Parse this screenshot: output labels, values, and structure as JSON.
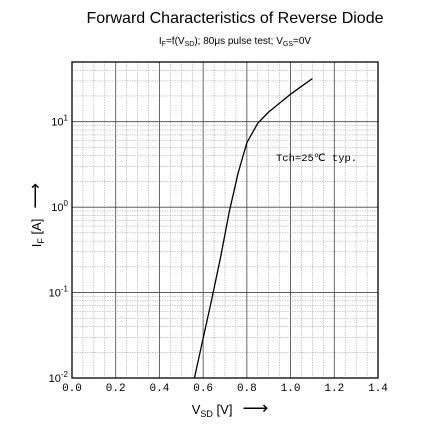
{
  "chart_data": {
    "type": "line",
    "title": "Forward Characteristics of Reverse Diode",
    "subtitle": {
      "p1": "I",
      "p1_sub": "F",
      "p2": "=f(V",
      "p2_sub": "SD",
      "p3": "); 80μs pulse test; V",
      "p3_sub": "GS",
      "p4": "=0V"
    },
    "xlabel": {
      "main": "V",
      "sub": "SD",
      "unit": " [V]",
      "arrow": "⟶"
    },
    "ylabel": {
      "main": "I",
      "sub": "F",
      "unit": " [A]",
      "arrow": "⟶"
    },
    "xlim": [
      0,
      1.4
    ],
    "ylim": [
      0.01,
      50
    ],
    "yscale": "log",
    "grid": true,
    "x_ticks": [
      "0.0",
      "0.2",
      "0.4",
      "0.6",
      "0.8",
      "1.0",
      "1.2",
      "1.4"
    ],
    "y_ticks": [
      {
        "base": "10",
        "exp": "-2",
        "value": 0.01
      },
      {
        "base": "10",
        "exp": "-1",
        "value": 0.1
      },
      {
        "base": "10",
        "exp": "0",
        "value": 1
      },
      {
        "base": "10",
        "exp": "1",
        "value": 10
      }
    ],
    "series": [
      {
        "x": [
          0.56,
          0.6,
          0.64,
          0.68,
          0.72,
          0.76,
          0.8,
          0.85,
          0.9,
          0.95,
          1.0,
          1.05,
          1.1
        ],
        "y": [
          0.01,
          0.029,
          0.085,
          0.26,
          0.9,
          2.5,
          5.7,
          9.6,
          13.0,
          16.5,
          21.0,
          26.0,
          32.0
        ]
      }
    ],
    "annotation": "Tch=25℃ typ.",
    "colors": {
      "line": "#000000",
      "grid": "#9a9a9a",
      "major_grid": "#444444"
    }
  }
}
